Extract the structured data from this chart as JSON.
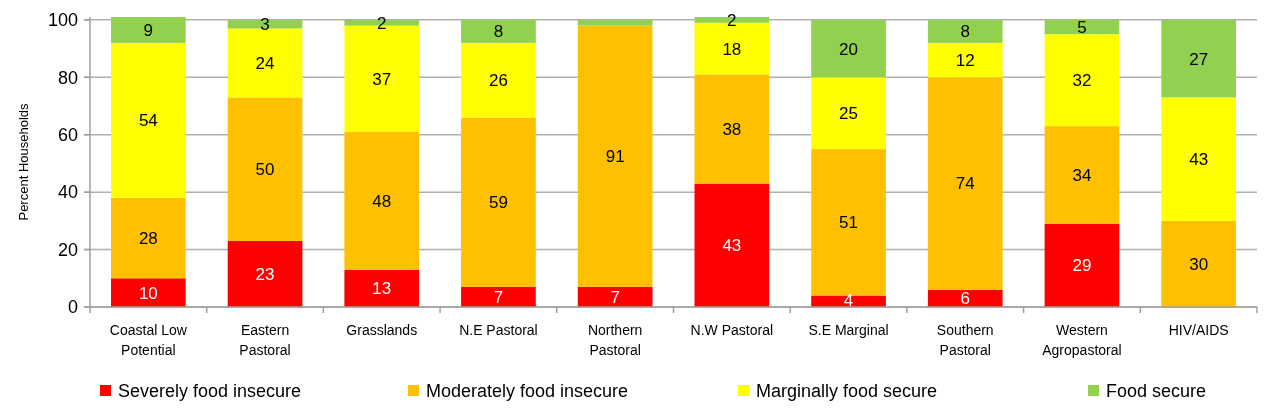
{
  "chart_data": {
    "type": "bar",
    "stacked": true,
    "ylabel": "Percent Households",
    "categories": [
      "Coastal Low Potential",
      "Eastern Pastoral",
      "Grasslands",
      "N.E Pastoral",
      "Northern Pastoral",
      "N.W Pastoral",
      "S.E Marginal",
      "Southern Pastoral",
      "Western Agropastoral",
      "HIV/AIDS"
    ],
    "ylim": [
      0,
      101
    ],
    "yticks": [
      0,
      20,
      40,
      60,
      80,
      100
    ],
    "grid": "y",
    "legend": "bottom",
    "series": [
      {
        "name": "Severely food insecure",
        "color": "#ff0000",
        "values": [
          10,
          23,
          13,
          7,
          7,
          43,
          4,
          6,
          29,
          0
        ],
        "value_labels": [
          "10",
          "23",
          "13",
          "7",
          "7",
          "43",
          "4",
          "6",
          "29",
          null
        ]
      },
      {
        "name": "Moderately food insecure",
        "color": "#ffc000",
        "values": [
          28,
          50,
          48,
          59,
          91,
          38,
          51,
          74,
          34,
          30
        ],
        "value_labels": [
          "28",
          "50",
          "48",
          "59",
          "91",
          "38",
          "51",
          "74",
          "34",
          "30"
        ]
      },
      {
        "name": "Marginally food secure",
        "color": "#ffff00",
        "values": [
          54,
          24,
          37,
          26,
          0,
          18,
          25,
          12,
          32,
          43
        ],
        "value_labels": [
          "54",
          "24",
          "37",
          "26",
          null,
          "18",
          "25",
          "12",
          "32",
          "43"
        ]
      },
      {
        "name": "Food secure",
        "color": "#92d050",
        "values": [
          9,
          3,
          2,
          8,
          2,
          2,
          20,
          8,
          5,
          27
        ],
        "value_labels": [
          "9",
          "3",
          "2",
          "8",
          null,
          "2",
          "20",
          "8",
          "5",
          "27"
        ]
      }
    ]
  }
}
